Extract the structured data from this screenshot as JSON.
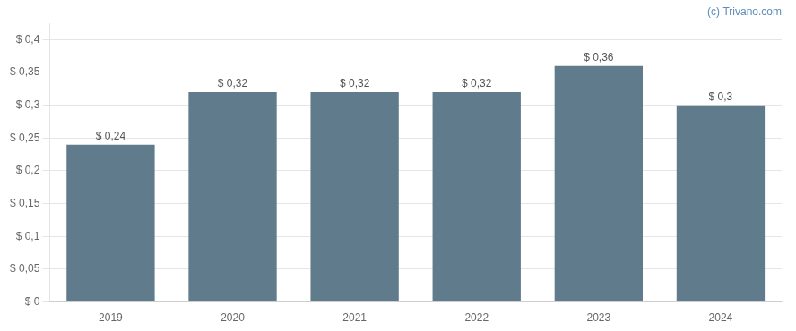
{
  "chart_data": {
    "type": "bar",
    "categories": [
      "2019",
      "2020",
      "2021",
      "2022",
      "2023",
      "2024"
    ],
    "values": [
      0.24,
      0.32,
      0.32,
      0.32,
      0.36,
      0.3
    ],
    "value_labels": [
      "$ 0,24",
      "$ 0,32",
      "$ 0,32",
      "$ 0,32",
      "$ 0,36",
      "$ 0,3"
    ],
    "data_labels": true,
    "color": "#607b8b",
    "ylim": [
      0,
      0.425
    ],
    "yticks": [
      {
        "value": 0,
        "label": "$ 0"
      },
      {
        "value": 0.05,
        "label": "$ 0,05"
      },
      {
        "value": 0.1,
        "label": "$ 0,1"
      },
      {
        "value": 0.15,
        "label": "$ 0,15"
      },
      {
        "value": 0.2,
        "label": "$ 0,2"
      },
      {
        "value": 0.25,
        "label": "$ 0,25"
      },
      {
        "value": 0.3,
        "label": "$ 0,3"
      },
      {
        "value": 0.35,
        "label": "$ 0,35"
      },
      {
        "value": 0.4,
        "label": "$ 0,4"
      }
    ],
    "grid": true,
    "annotations": [
      "(c) Trivano.com"
    ]
  }
}
